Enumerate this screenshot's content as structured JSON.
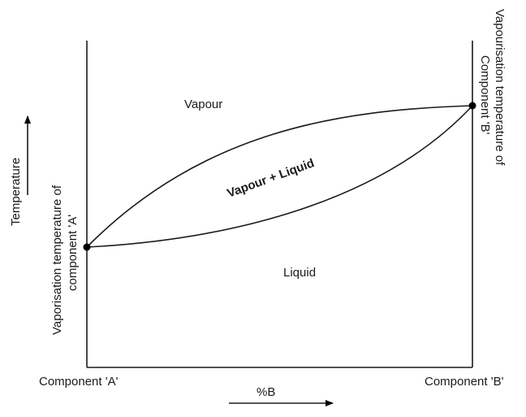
{
  "diagram": {
    "region_vapour": "Vapour",
    "region_two_phase": "Vapour + Liquid",
    "region_liquid": "Liquid",
    "temperature_label": "Temperature",
    "composition_label": "%B",
    "left_end_label": "Component 'A'",
    "right_end_label": "Component 'B'",
    "left_vaporisation_line1": "Vaporisation temperature of",
    "left_vaporisation_line2": "component 'A'",
    "right_vaporisation_line1": "Vapourisation temperature of",
    "right_vaporisation_line2": "Component 'B'"
  },
  "colors": {
    "ink": "#1a1a1a",
    "background": "#ffffff"
  }
}
